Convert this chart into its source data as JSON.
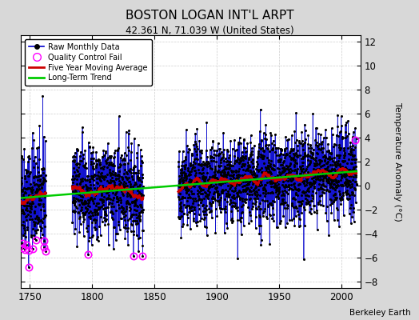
{
  "title": "BOSTON LOGAN INT'L ARPT",
  "subtitle": "42.361 N, 71.039 W (United States)",
  "ylabel": "Temperature Anomaly (°C)",
  "credit": "Berkeley Earth",
  "xlim": [
    1743,
    2015
  ],
  "ylim": [
    -8.5,
    12.5
  ],
  "yticks": [
    -8,
    -6,
    -4,
    -2,
    0,
    2,
    4,
    6,
    8,
    10,
    12
  ],
  "xticks": [
    1750,
    1800,
    1850,
    1900,
    1950,
    2000
  ],
  "seed": 42,
  "background_color": "#d8d8d8",
  "plot_bg_color": "#ffffff",
  "line_color_raw": "#0000cc",
  "line_color_avg": "#cc0000",
  "line_color_trend": "#00cc00",
  "dot_color": "#000000",
  "qc_color": "#ff00ff",
  "stem_color": "#8888dd"
}
